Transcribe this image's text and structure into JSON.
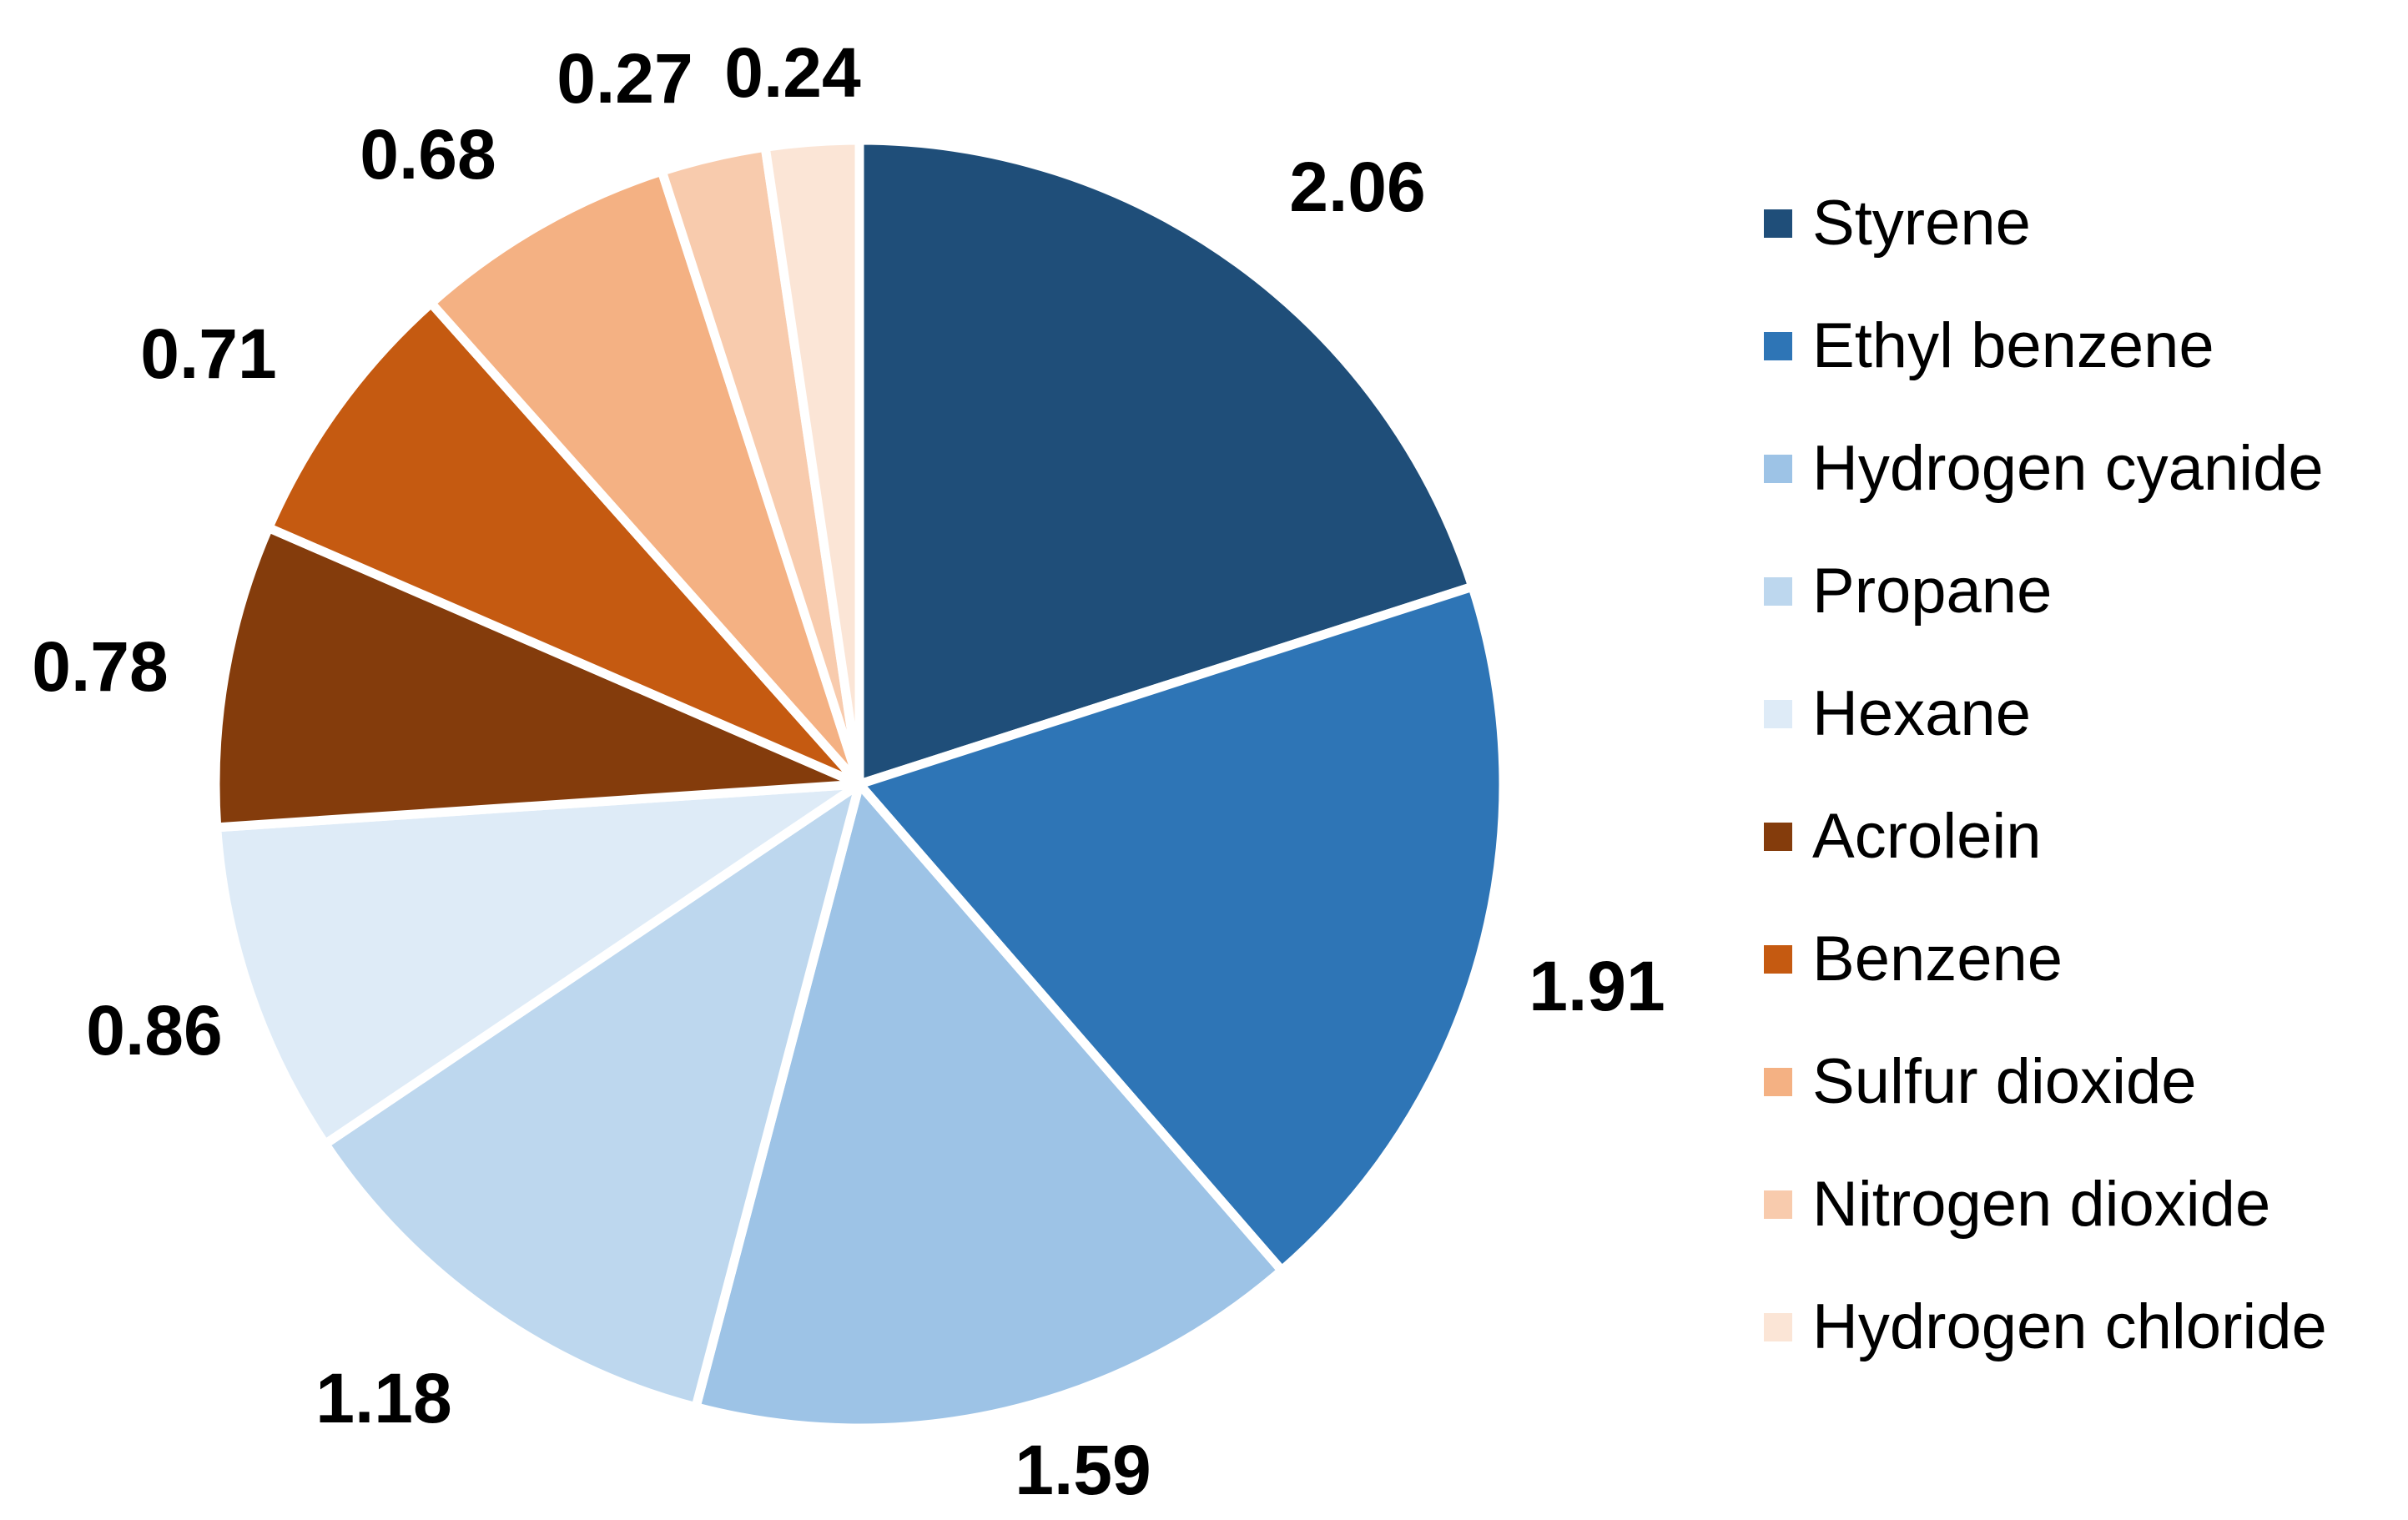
{
  "chart_data": {
    "type": "pie",
    "title": "",
    "direction": "clockwise",
    "start_angle_deg": 0,
    "legend_position": "right",
    "grid": false,
    "background_color": "#FFFFFF",
    "separator_color": "#FFFFFF",
    "data_label_color": "#000000",
    "legend_text_color": "#000000",
    "total": 10.28,
    "slices": [
      {
        "label": "Styrene",
        "value": 2.06,
        "data_label": "2.06",
        "color": "#1F4E79"
      },
      {
        "label": "Ethyl benzene",
        "value": 1.91,
        "data_label": "1.91",
        "color": "#2E75B6"
      },
      {
        "label": "Hydrogen cyanide",
        "value": 1.59,
        "data_label": "1.59",
        "color": "#9DC3E6"
      },
      {
        "label": "Propane",
        "value": 1.18,
        "data_label": "1.18",
        "color": "#BDD7EE"
      },
      {
        "label": "Hexane",
        "value": 0.86,
        "data_label": "0.86",
        "color": "#DEEBF7"
      },
      {
        "label": "Acrolein",
        "value": 0.78,
        "data_label": "0.78",
        "color": "#843C0C"
      },
      {
        "label": "Benzene",
        "value": 0.71,
        "data_label": "0.71",
        "color": "#C55A11"
      },
      {
        "label": "Sulfur dioxide",
        "value": 0.68,
        "data_label": "0.68",
        "color": "#F4B183"
      },
      {
        "label": "Nitrogen dioxide",
        "value": 0.27,
        "data_label": "0.27",
        "color": "#F8CBAD"
      },
      {
        "label": "Hydrogen chloride",
        "value": 0.24,
        "data_label": "0.24",
        "color": "#FBE5D6"
      }
    ]
  }
}
